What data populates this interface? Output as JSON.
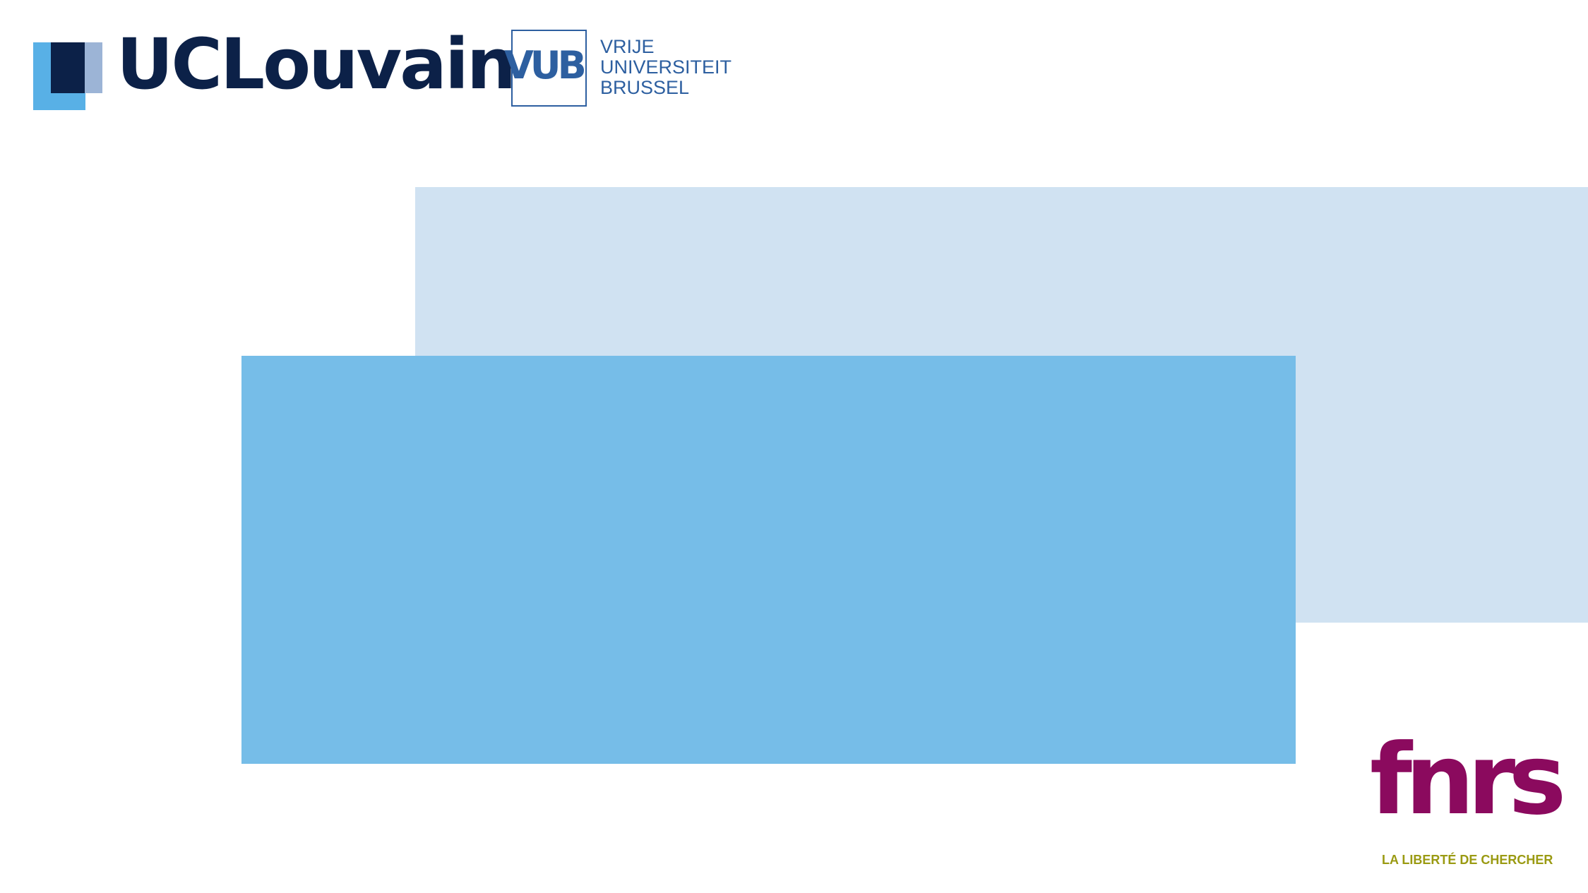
{
  "logos": {
    "uclouvain": {
      "wordmark": "UCLouvain",
      "colors": {
        "dark": "#0c2148",
        "light": "#58b0e6",
        "grey": "#9cb4d6"
      }
    },
    "vub": {
      "mark": "VUB",
      "lines": [
        "VRIJE",
        "UNIVERSITEIT",
        "BRUSSEL"
      ],
      "color": "#2d5fa0"
    },
    "fnrs": {
      "wordmark": "fnrs",
      "tagline": "LA LIBERTÉ DE CHERCHER",
      "colors": {
        "wordmark": "#8b0a5e",
        "tagline": "#9a9a12"
      }
    }
  },
  "shapes": {
    "back_rect_color": "#d0e2f2",
    "front_rect_color": "#76bde8"
  }
}
